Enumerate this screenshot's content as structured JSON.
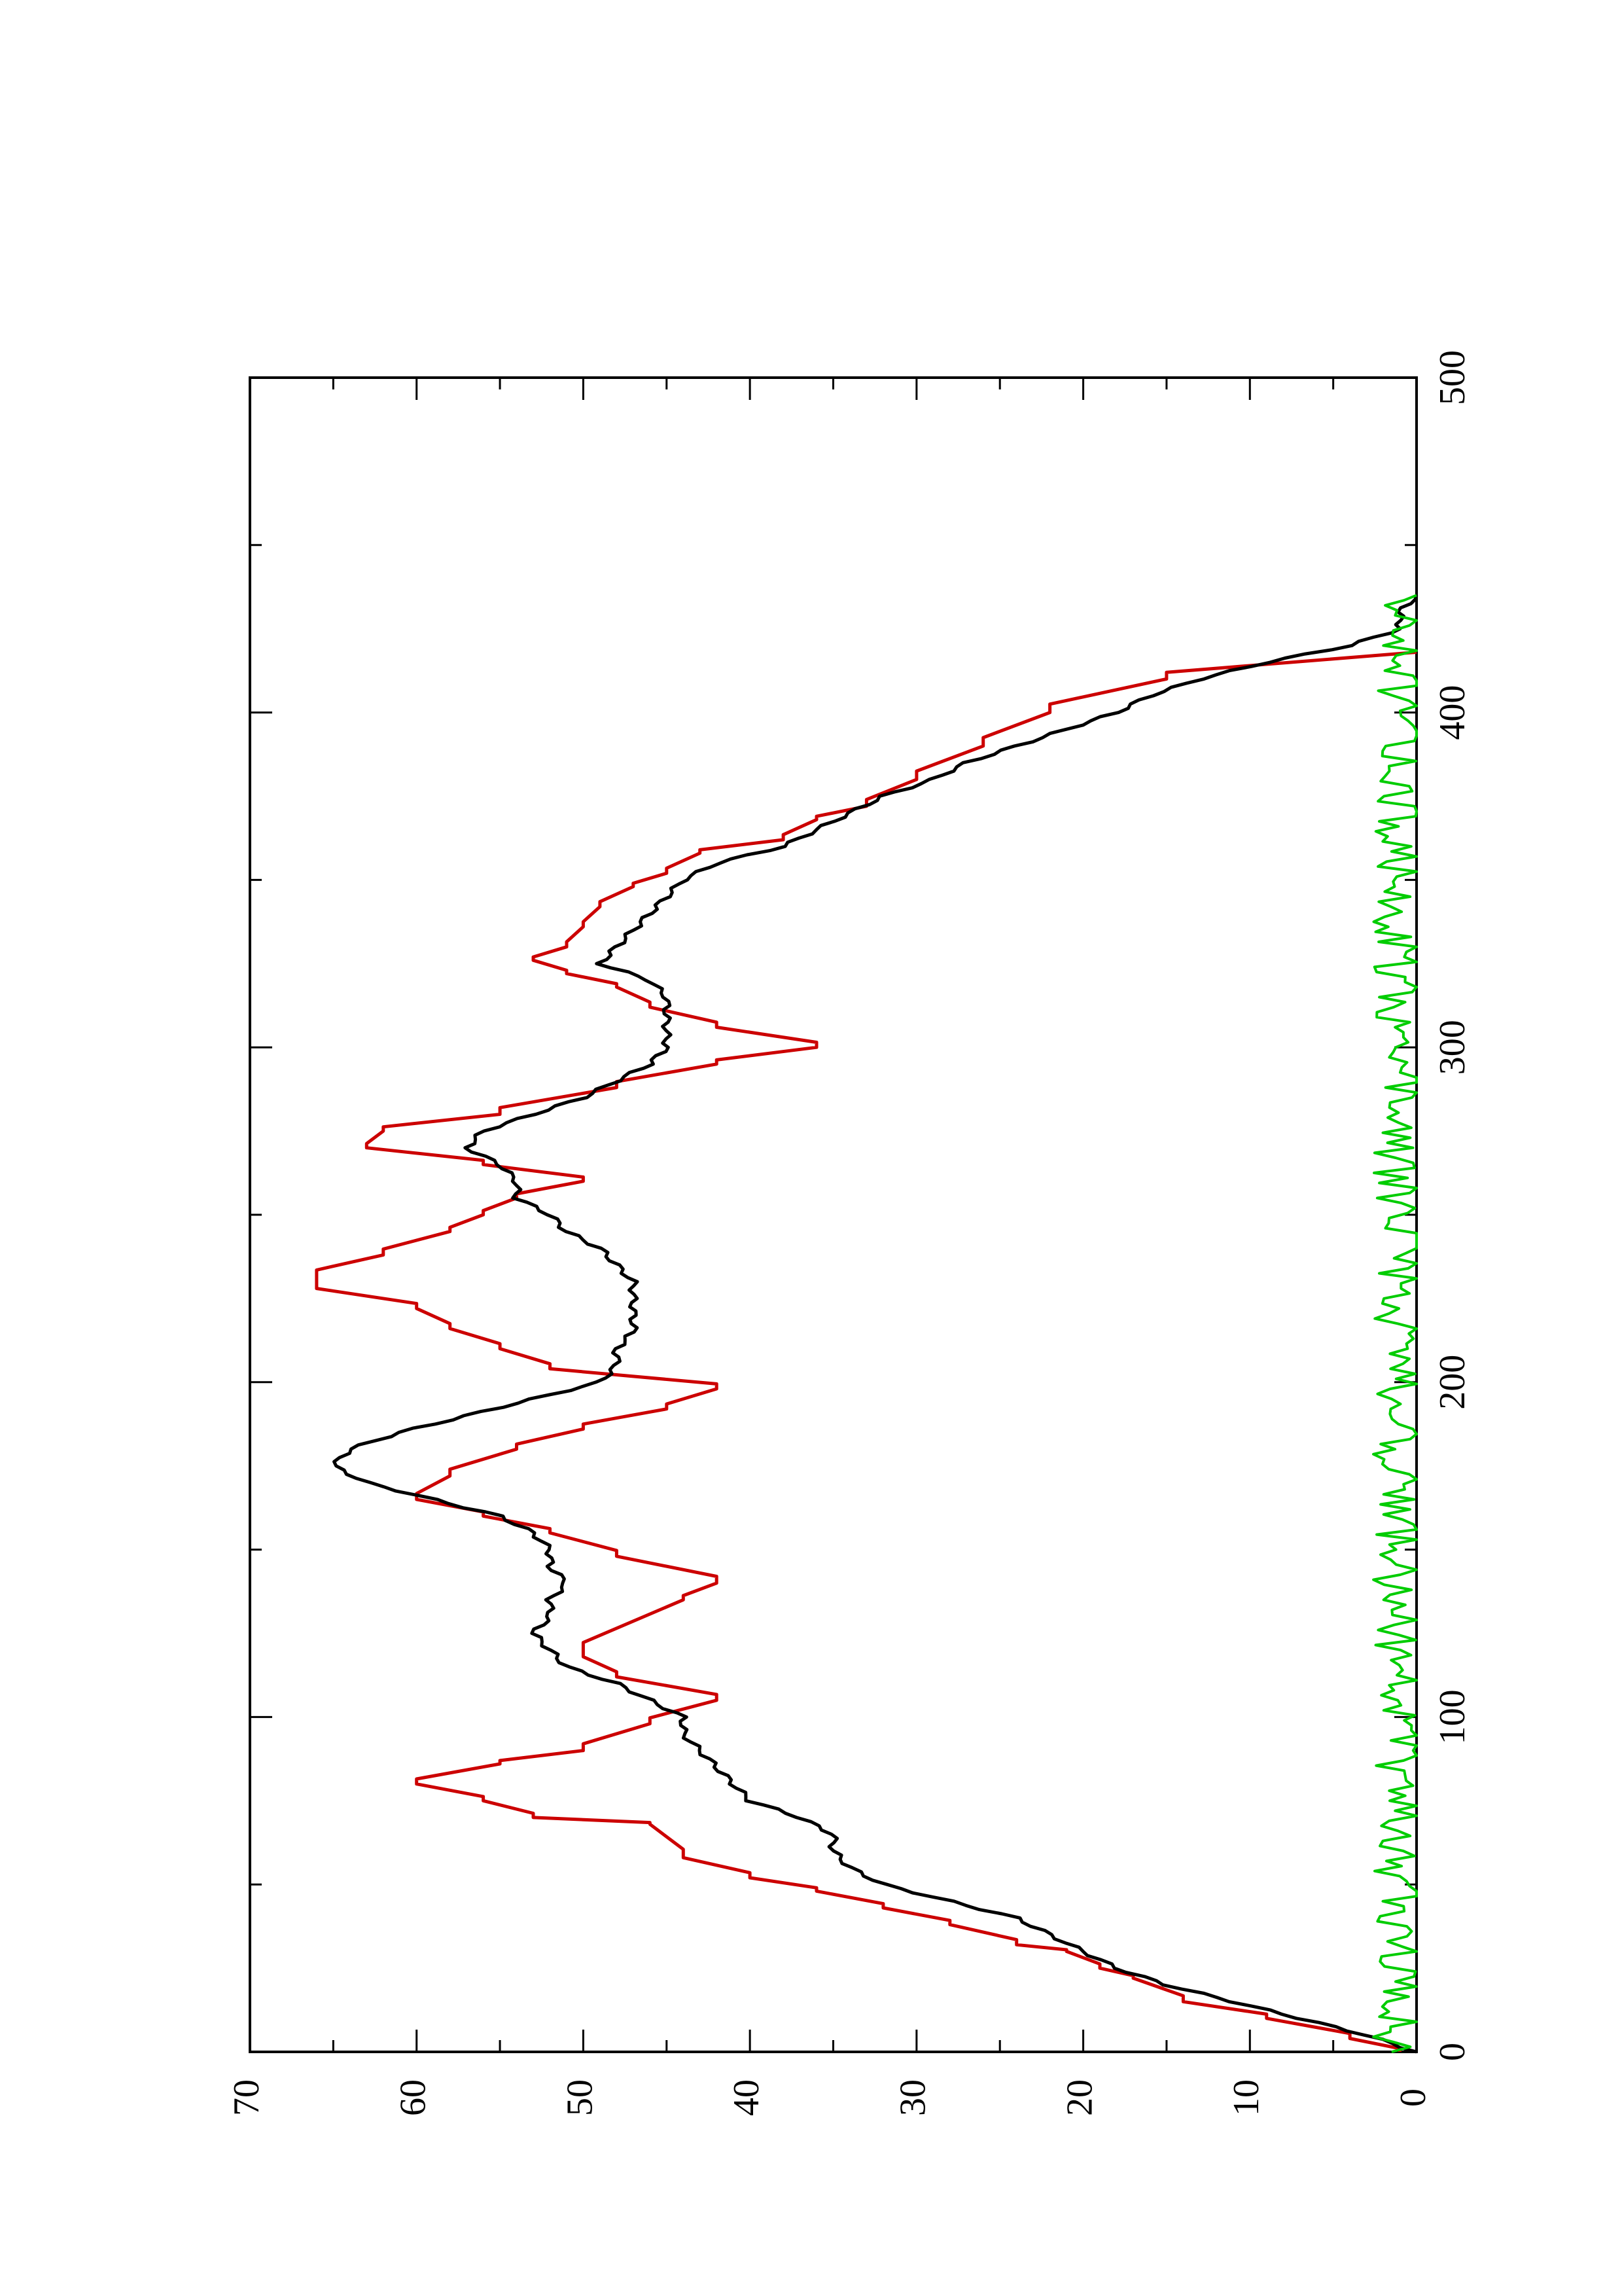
{
  "chart_data": {
    "type": "line",
    "orientation": "rotated-90",
    "title": "",
    "xlabel": "",
    "ylabel": "",
    "xlim": [
      0,
      500
    ],
    "ylim": [
      0,
      70
    ],
    "x_ticks": [
      "0",
      "100",
      "200",
      "300",
      "400",
      "500"
    ],
    "y_ticks": [
      "0",
      "10",
      "20",
      "30",
      "40",
      "50",
      "60",
      "70"
    ],
    "grid": false,
    "legend": "none",
    "series": [
      {
        "color": "#cc0000",
        "style": "step",
        "x": [
          0,
          4,
          10,
          15,
          22,
          25,
          30,
          32,
          38,
          43,
          48,
          52,
          58,
          68,
          70,
          75,
          80,
          86,
          90,
          98,
          105,
          112,
          118,
          135,
          140,
          148,
          155,
          160,
          165,
          172,
          180,
          186,
          192,
          198,
          204,
          210,
          216,
          222,
          228,
          232,
          238,
          245,
          250,
          255,
          260,
          265,
          270,
          275,
          280,
          288,
          295,
          300,
          306,
          312,
          318,
          322,
          326,
          330,
          336,
          342,
          348,
          352,
          358,
          362,
          368,
          372,
          380,
          390,
          400,
          410,
          418
        ],
        "y": [
          1,
          4,
          9,
          14,
          17,
          19,
          21,
          24,
          28,
          32,
          36,
          40,
          44,
          46,
          53,
          56,
          60,
          55,
          50,
          46,
          42,
          48,
          50,
          44,
          42,
          48,
          52,
          56,
          60,
          58,
          54,
          50,
          45,
          42,
          52,
          55,
          58,
          60,
          66,
          66,
          62,
          58,
          56,
          54,
          50,
          56,
          63,
          62,
          55,
          48,
          42,
          36,
          42,
          46,
          48,
          51,
          53,
          51,
          50,
          49,
          47,
          45,
          43,
          38,
          36,
          33,
          30,
          26,
          22,
          15,
          0
        ]
      },
      {
        "color": "#000000",
        "style": "smooth",
        "x": [
          0,
          5,
          10,
          15,
          20,
          25,
          30,
          35,
          40,
          45,
          50,
          55,
          60,
          65,
          70,
          75,
          80,
          85,
          90,
          95,
          100,
          105,
          110,
          115,
          120,
          125,
          130,
          135,
          140,
          145,
          150,
          155,
          160,
          165,
          170,
          175,
          180,
          185,
          190,
          195,
          200,
          205,
          210,
          215,
          220,
          225,
          230,
          235,
          240,
          245,
          250,
          255,
          260,
          265,
          270,
          275,
          280,
          285,
          290,
          295,
          300,
          305,
          310,
          315,
          320,
          325,
          330,
          335,
          340,
          345,
          350,
          355,
          360,
          365,
          370,
          375,
          380,
          385,
          390,
          395,
          400,
          405,
          410,
          415,
          420,
          425,
          430,
          435
        ],
        "y": [
          0,
          3,
          7,
          11,
          15,
          18,
          20,
          22,
          24,
          28,
          32,
          34,
          35,
          35,
          37,
          40,
          41,
          42,
          43,
          44,
          44,
          46,
          48,
          51,
          52,
          53,
          52,
          52,
          51,
          52,
          52,
          53,
          55,
          59,
          63,
          65,
          64,
          61,
          57,
          53,
          49,
          48,
          48,
          47,
          47,
          47,
          47,
          48,
          49,
          51,
          52,
          54,
          54,
          55,
          57,
          56,
          53,
          50,
          48,
          46,
          45,
          45,
          45,
          45,
          46,
          49,
          48,
          47,
          46,
          45,
          44,
          42,
          38,
          36,
          34,
          32,
          29,
          27,
          24,
          21,
          18,
          16,
          13,
          9,
          4,
          1,
          1,
          0
        ]
      },
      {
        "color": "#00cc00",
        "style": "noise",
        "x_start": 0,
        "x_end": 435,
        "mean": 1,
        "amplitude": 1.6
      }
    ]
  }
}
